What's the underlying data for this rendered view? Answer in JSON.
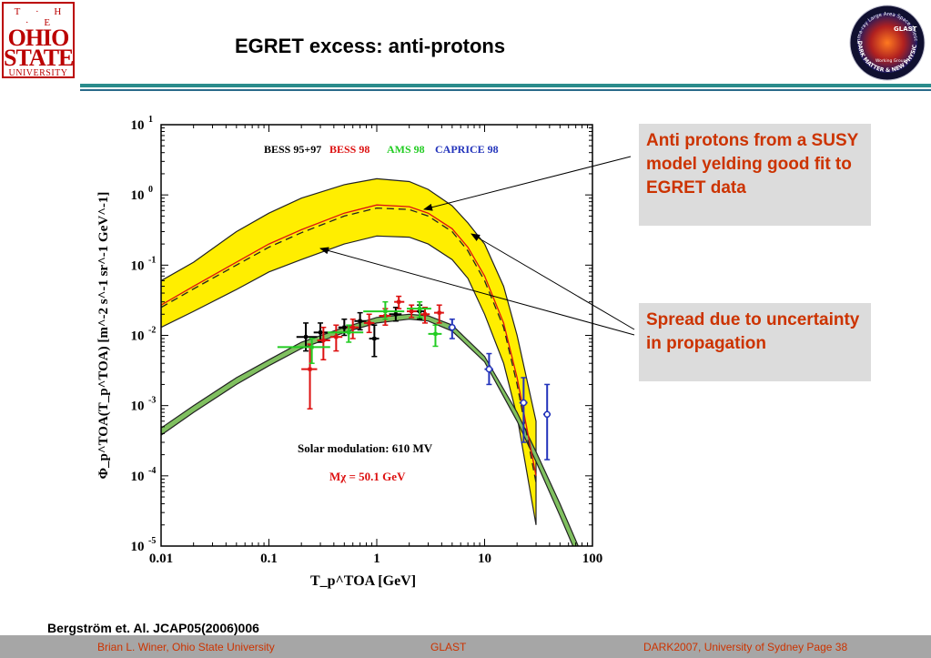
{
  "slide": {
    "title": "EGRET excess:  anti-protons",
    "citation": "Bergström et. Al.  JCAP05(2006)006"
  },
  "logo": {
    "the": "T · H · E",
    "ohio": "OHIO",
    "state": "STATE",
    "university": "UNIVERSITY",
    "glast_ring_top": "Gamma-ray Large Area Space Telescope",
    "glast_ring_bottom": "DARK MATTER & NEW PHYSICS",
    "glast_center": "GLAST",
    "glast_sub": "Working Group"
  },
  "callouts": {
    "first": "Anti protons from a SUSY model yelding good fit to EGRET data",
    "second": "Spread due to uncertainty in propagation"
  },
  "footer": {
    "left": "Brian L. Winer, Ohio State University",
    "middle": "GLAST",
    "right": "DARK2007,  University of Sydney   Page   38"
  },
  "colors": {
    "accent": "#cc3300",
    "band_yellow": "#ffee00",
    "band_green": "#80c060",
    "bess9597": "#000000",
    "bess98": "#dd1111",
    "ams98": "#22cc22",
    "caprice98": "#2233bb",
    "rule": "#2a8c8c"
  },
  "chart_data": {
    "type": "scatter",
    "xlabel": "T_p^TOA [GeV]",
    "ylabel": "Φ_p^TOA(T_p^TOA) [m^-2 s^-1 sr^-1 GeV^-1]",
    "xscale": "log",
    "yscale": "log",
    "xlim": [
      0.01,
      100
    ],
    "ylim": [
      1e-05,
      10
    ],
    "xticks": [
      "0.01",
      "0.1",
      "1",
      "10",
      "100"
    ],
    "yticks": [
      "10-5",
      "10-4",
      "10-3",
      "10-2",
      "10-1",
      "100",
      "101"
    ],
    "legend": [
      "BESS 95+97",
      "BESS 98",
      "AMS 98",
      "CAPRICE 98"
    ],
    "legend_placement": "top",
    "annotations": [
      "Solar modulation: 610 MV",
      "Mχ = 50.1 GeV"
    ],
    "bands": [
      {
        "name": "susy-band",
        "x": [
          0.01,
          0.02,
          0.05,
          0.1,
          0.2,
          0.5,
          1,
          2,
          3,
          5,
          7,
          10,
          15,
          20,
          30
        ],
        "upper": [
          0.06,
          0.11,
          0.3,
          0.55,
          0.9,
          1.4,
          1.7,
          1.55,
          1.2,
          0.7,
          0.4,
          0.2,
          0.05,
          0.01,
          0.0006
        ],
        "lower": [
          0.013,
          0.022,
          0.045,
          0.08,
          0.12,
          0.2,
          0.26,
          0.25,
          0.2,
          0.12,
          0.065,
          0.02,
          0.004,
          0.0007,
          2e-05
        ]
      },
      {
        "name": "background-band",
        "x": [
          0.01,
          0.02,
          0.05,
          0.1,
          0.2,
          0.5,
          1,
          2,
          3,
          5,
          10,
          20,
          30,
          50,
          80
        ],
        "upper": [
          0.00048,
          0.001,
          0.0025,
          0.0045,
          0.008,
          0.013,
          0.018,
          0.02,
          0.019,
          0.014,
          0.005,
          0.0008,
          0.00022,
          4e-05,
          7.5e-06
        ],
        "lower": [
          0.00038,
          0.0008,
          0.002,
          0.0037,
          0.0065,
          0.011,
          0.015,
          0.017,
          0.016,
          0.0115,
          0.0042,
          0.0006,
          0.00016,
          2.7e-05,
          5e-06
        ]
      }
    ],
    "lines": [
      {
        "name": "susy-solid",
        "color": "#dd1111",
        "dash": false,
        "x": [
          0.01,
          0.02,
          0.05,
          0.1,
          0.2,
          0.5,
          1,
          2,
          3,
          5,
          7,
          10,
          15,
          20,
          30
        ],
        "y": [
          0.027,
          0.05,
          0.11,
          0.2,
          0.32,
          0.55,
          0.72,
          0.68,
          0.55,
          0.33,
          0.18,
          0.07,
          0.015,
          0.0025,
          0.0001
        ]
      },
      {
        "name": "susy-dashed",
        "color": "#222222",
        "dash": true,
        "x": [
          0.01,
          0.02,
          0.05,
          0.1,
          0.2,
          0.5,
          1,
          2,
          3,
          5,
          7,
          10,
          15,
          20,
          30
        ],
        "y": [
          0.025,
          0.046,
          0.1,
          0.18,
          0.29,
          0.5,
          0.65,
          0.62,
          0.5,
          0.3,
          0.16,
          0.06,
          0.013,
          0.002,
          8e-05
        ]
      }
    ],
    "series": [
      {
        "name": "BESS 95+97",
        "color": "#000000",
        "marker": "cross",
        "points": [
          {
            "x": 0.22,
            "y": 0.0095,
            "ylo": 0.006,
            "yhi": 0.015,
            "xlo": 0.18,
            "xhi": 0.28
          },
          {
            "x": 0.3,
            "y": 0.011,
            "ylo": 0.008,
            "yhi": 0.015,
            "xlo": 0.26,
            "xhi": 0.35
          },
          {
            "x": 0.5,
            "y": 0.013,
            "ylo": 0.01,
            "yhi": 0.017,
            "xlo": 0.44,
            "xhi": 0.57
          },
          {
            "x": 0.7,
            "y": 0.016,
            "ylo": 0.012,
            "yhi": 0.021,
            "xlo": 0.62,
            "xhi": 0.8
          },
          {
            "x": 0.95,
            "y": 0.009,
            "ylo": 0.005,
            "yhi": 0.014,
            "xlo": 0.85,
            "xhi": 1.05
          },
          {
            "x": 1.5,
            "y": 0.02,
            "ylo": 0.016,
            "yhi": 0.025,
            "xlo": 1.3,
            "xhi": 1.7
          },
          {
            "x": 2.5,
            "y": 0.022,
            "ylo": 0.017,
            "yhi": 0.027,
            "xlo": 2.2,
            "xhi": 2.8
          }
        ]
      },
      {
        "name": "BESS 98",
        "color": "#dd1111",
        "marker": "cross",
        "points": [
          {
            "x": 0.24,
            "y": 0.0033,
            "ylo": 0.0009,
            "yhi": 0.0075,
            "xlo": 0.2,
            "xhi": 0.28
          },
          {
            "x": 0.32,
            "y": 0.0085,
            "ylo": 0.0045,
            "yhi": 0.013,
            "xlo": 0.28,
            "xhi": 0.37
          },
          {
            "x": 0.42,
            "y": 0.0095,
            "ylo": 0.006,
            "yhi": 0.014,
            "xlo": 0.37,
            "xhi": 0.48
          },
          {
            "x": 0.6,
            "y": 0.013,
            "ylo": 0.009,
            "yhi": 0.017,
            "xlo": 0.53,
            "xhi": 0.68
          },
          {
            "x": 0.85,
            "y": 0.015,
            "ylo": 0.011,
            "yhi": 0.02,
            "xlo": 0.76,
            "xhi": 0.95
          },
          {
            "x": 1.2,
            "y": 0.019,
            "ylo": 0.014,
            "yhi": 0.024,
            "xlo": 1.05,
            "xhi": 1.35
          },
          {
            "x": 1.6,
            "y": 0.03,
            "ylo": 0.024,
            "yhi": 0.036,
            "xlo": 1.45,
            "xhi": 1.8
          },
          {
            "x": 2.1,
            "y": 0.022,
            "ylo": 0.018,
            "yhi": 0.027,
            "xlo": 1.9,
            "xhi": 2.35
          },
          {
            "x": 2.8,
            "y": 0.02,
            "ylo": 0.015,
            "yhi": 0.025,
            "xlo": 2.5,
            "xhi": 3.1
          },
          {
            "x": 3.8,
            "y": 0.021,
            "ylo": 0.015,
            "yhi": 0.027,
            "xlo": 3.4,
            "xhi": 4.2
          }
        ]
      },
      {
        "name": "AMS 98",
        "color": "#22cc22",
        "marker": "cross",
        "points": [
          {
            "x": 0.25,
            "y": 0.0068,
            "ylo": 0.004,
            "yhi": 0.009,
            "xlo": 0.12,
            "xhi": 0.37
          },
          {
            "x": 0.55,
            "y": 0.011,
            "ylo": 0.008,
            "yhi": 0.014,
            "xlo": 0.35,
            "xhi": 0.75
          },
          {
            "x": 1.2,
            "y": 0.022,
            "ylo": 0.017,
            "yhi": 0.03,
            "xlo": 0.75,
            "xhi": 1.8
          },
          {
            "x": 2.5,
            "y": 0.024,
            "ylo": 0.018,
            "yhi": 0.03,
            "xlo": 1.9,
            "xhi": 3.2
          },
          {
            "x": 3.5,
            "y": 0.0105,
            "ylo": 0.007,
            "yhi": 0.014,
            "xlo": 3.0,
            "xhi": 4.0
          }
        ]
      },
      {
        "name": "CAPRICE 98",
        "color": "#2233bb",
        "marker": "circle",
        "points": [
          {
            "x": 5.0,
            "y": 0.013,
            "ylo": 0.009,
            "yhi": 0.017,
            "xlo": 4.6,
            "xhi": 5.4
          },
          {
            "x": 11,
            "y": 0.0033,
            "ylo": 0.002,
            "yhi": 0.0055,
            "xlo": 10,
            "xhi": 12
          },
          {
            "x": 23,
            "y": 0.0011,
            "ylo": 0.0003,
            "yhi": 0.0025,
            "xlo": 21,
            "xhi": 25
          },
          {
            "x": 38,
            "y": 0.00075,
            "ylo": 0.00017,
            "yhi": 0.002,
            "xlo": 35,
            "xhi": 41
          }
        ]
      }
    ]
  }
}
